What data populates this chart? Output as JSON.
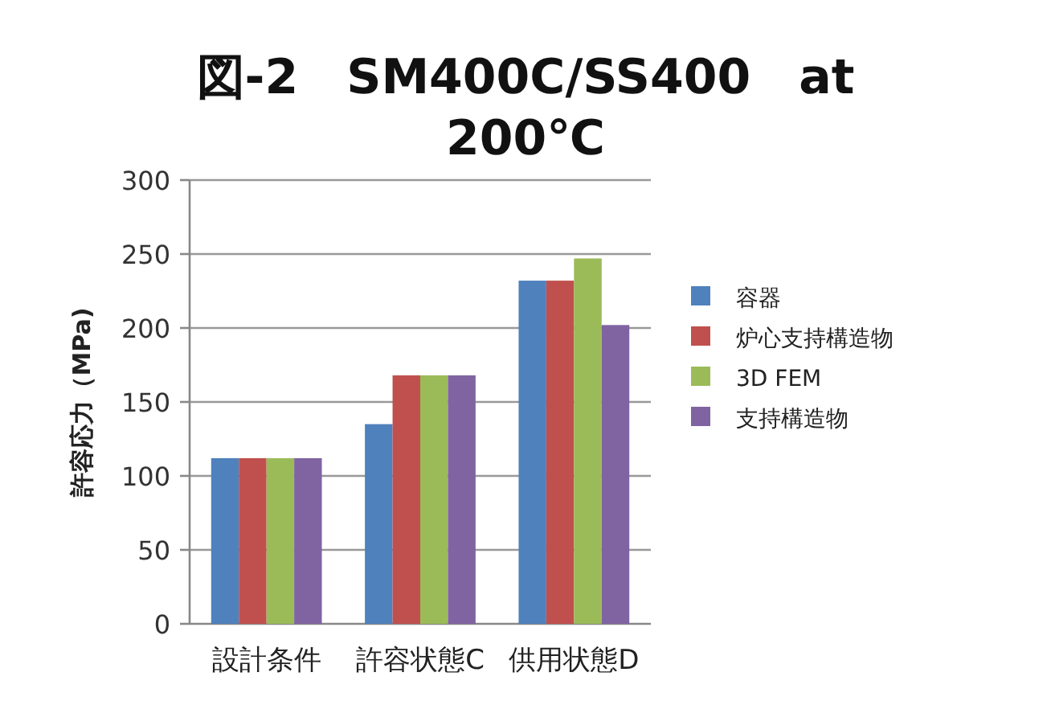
{
  "chart_data": {
    "type": "bar",
    "title": "図-2　SM400C/SS400　at 200℃",
    "ylabel": "許容応力（MPa)",
    "categories": [
      "設計条件",
      "許容状態C",
      "供用状態D"
    ],
    "series": [
      {
        "name": "容器",
        "color": "#4f81bd",
        "values": [
          112,
          135,
          232
        ]
      },
      {
        "name": "炉心支持構造物",
        "color": "#c0504d",
        "values": [
          112,
          168,
          232
        ]
      },
      {
        "name": "3D FEM",
        "color": "#9bbb59",
        "values": [
          112,
          168,
          247
        ]
      },
      {
        "name": "支持構造物",
        "color": "#8064a2",
        "values": [
          112,
          168,
          202
        ]
      }
    ],
    "ylim": [
      0,
      300
    ],
    "yticks": [
      0,
      50,
      100,
      150,
      200,
      250,
      300
    ],
    "grid": "y",
    "legend": "right"
  }
}
